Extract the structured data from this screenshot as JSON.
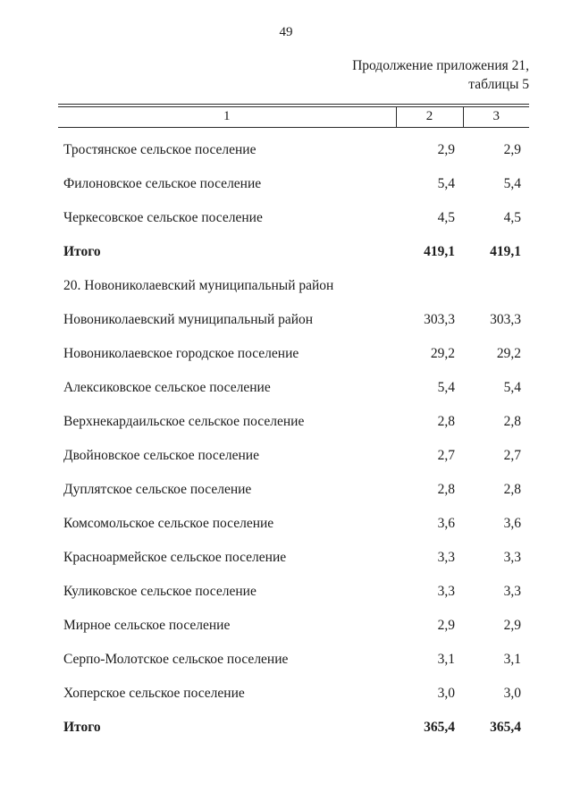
{
  "page": {
    "number": "49",
    "continuation_line1": "Продолжение приложения 21,",
    "continuation_line2": "таблицы 5"
  },
  "table": {
    "headers": [
      "1",
      "2",
      "3"
    ],
    "rows": [
      {
        "name": "Тростянское сельское поселение",
        "col2": "2,9",
        "col3": "2,9",
        "bold": false
      },
      {
        "name": "Филоновское сельское поселение",
        "col2": "5,4",
        "col3": "5,4",
        "bold": false
      },
      {
        "name": "Черкесовское сельское поселение",
        "col2": "4,5",
        "col3": "4,5",
        "bold": false
      },
      {
        "name": "Итого",
        "col2": "419,1",
        "col3": "419,1",
        "bold": true
      },
      {
        "name": "20. Новониколаевский муниципальный район",
        "col2": "",
        "col3": "",
        "bold": false
      },
      {
        "name": "Новониколаевский муниципальный район",
        "col2": "303,3",
        "col3": "303,3",
        "bold": false
      },
      {
        "name": "Новониколаевское городское поселение",
        "col2": "29,2",
        "col3": "29,2",
        "bold": false
      },
      {
        "name": "Алексиковское сельское поселение",
        "col2": "5,4",
        "col3": "5,4",
        "bold": false
      },
      {
        "name": "Верхнекардаильское сельское поселение",
        "col2": "2,8",
        "col3": "2,8",
        "bold": false
      },
      {
        "name": "Двойновское сельское поселение",
        "col2": "2,7",
        "col3": "2,7",
        "bold": false
      },
      {
        "name": "Дуплятское сельское поселение",
        "col2": "2,8",
        "col3": "2,8",
        "bold": false
      },
      {
        "name": "Комсомольское сельское поселение",
        "col2": "3,6",
        "col3": "3,6",
        "bold": false
      },
      {
        "name": "Красноармейское сельское поселение",
        "col2": "3,3",
        "col3": "3,3",
        "bold": false
      },
      {
        "name": "Куликовское сельское поселение",
        "col2": "3,3",
        "col3": "3,3",
        "bold": false
      },
      {
        "name": "Мирное сельское поселение",
        "col2": "2,9",
        "col3": "2,9",
        "bold": false
      },
      {
        "name": "Серпо-Молотское сельское поселение",
        "col2": "3,1",
        "col3": "3,1",
        "bold": false
      },
      {
        "name": "Хоперское сельское поселение",
        "col2": "3,0",
        "col3": "3,0",
        "bold": false
      },
      {
        "name": "Итого",
        "col2": "365,4",
        "col3": "365,4",
        "bold": true
      }
    ]
  }
}
